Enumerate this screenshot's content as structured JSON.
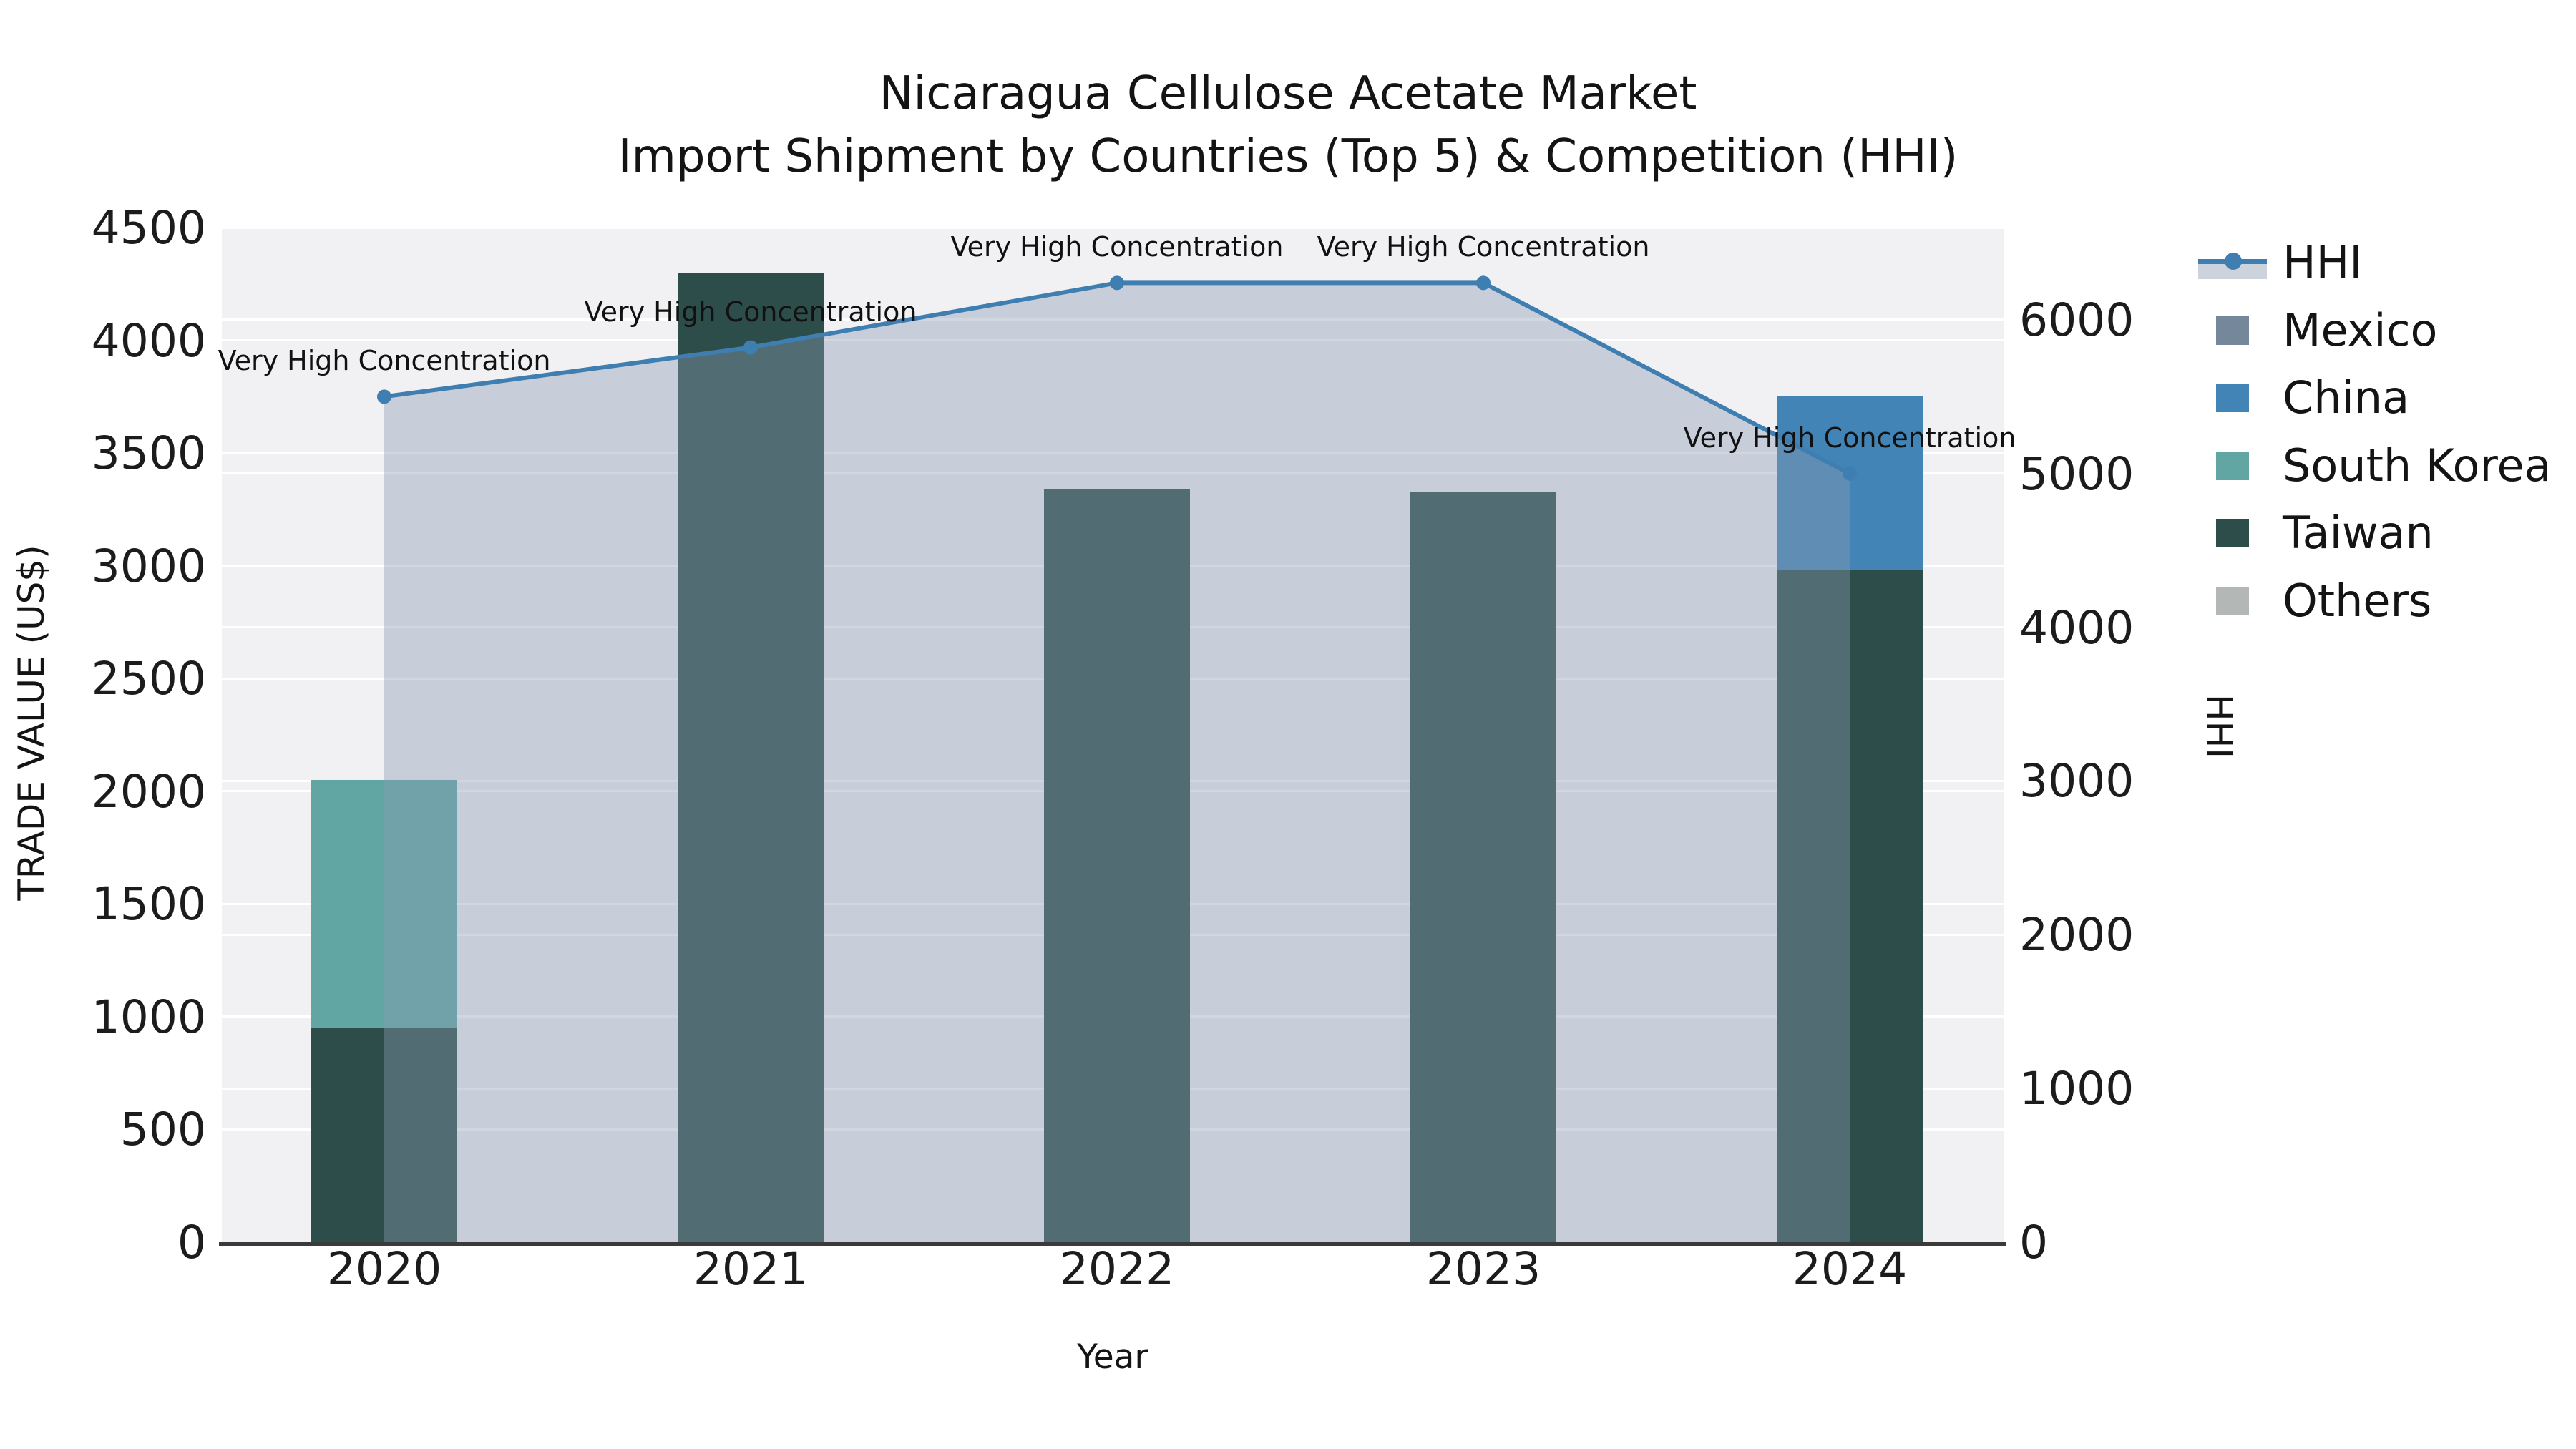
{
  "title": {
    "line1": "Nicaragua Cellulose Acetate Market",
    "line2": "Import Shipment by Countries (Top 5) & Competition (HHI)"
  },
  "legend": {
    "items": [
      {
        "label": "HHI",
        "type": "line",
        "color": "#3f7eb0",
        "band_color": "#ccd3dc"
      },
      {
        "label": "Mexico",
        "type": "patch",
        "color": "#75879b"
      },
      {
        "label": "China",
        "type": "patch",
        "color": "#4384b6"
      },
      {
        "label": "South Korea",
        "type": "patch",
        "color": "#62a6a3"
      },
      {
        "label": "Taiwan",
        "type": "patch",
        "color": "#2d4d4b"
      },
      {
        "label": "Others",
        "type": "patch",
        "color": "#b3b7b6"
      }
    ]
  },
  "chart_data": {
    "type": "combo-bar-line",
    "title": "Nicaragua Cellulose Acetate Market — Import Shipment by Countries (Top 5) & Competition (HHI)",
    "categories": [
      "2020",
      "2021",
      "2022",
      "2023",
      "2024"
    ],
    "xlabel": "Year",
    "left_axis": {
      "label": "TRADE VALUE (US$)",
      "min": 0,
      "max": 4500,
      "tick_step": 500,
      "ticks": [
        "0",
        "500",
        "1000",
        "1500",
        "2000",
        "2500",
        "3000",
        "3500",
        "4000",
        "4500"
      ]
    },
    "right_axis": {
      "label": "HHI",
      "min": 0,
      "max": 6600,
      "tick_step": 1000,
      "ticks": [
        "0",
        "1000",
        "2000",
        "3000",
        "4000",
        "5000",
        "6000"
      ]
    },
    "bar_series": [
      {
        "name": "Taiwan",
        "color": "#2d4d4b",
        "values": [
          950,
          4300,
          3340,
          3330,
          2980
        ]
      },
      {
        "name": "South Korea",
        "color": "#62a6a3",
        "values": [
          1100,
          0,
          0,
          0,
          0
        ]
      },
      {
        "name": "China",
        "color": "#4384b6",
        "values": [
          0,
          0,
          0,
          0,
          770
        ]
      },
      {
        "name": "Mexico",
        "color": "#75879b",
        "values": [
          0,
          0,
          0,
          0,
          0
        ]
      },
      {
        "name": "Others",
        "color": "#b3b7b6",
        "values": [
          0,
          0,
          0,
          0,
          0
        ]
      }
    ],
    "line_series": {
      "name": "HHI",
      "axis": "right",
      "color": "#3f7eb0",
      "marker": "circle",
      "fill_color": "rgba(138,156,178,0.4)",
      "values": [
        5500,
        5820,
        6240,
        6240,
        5000
      ]
    },
    "point_labels": [
      "Very High Concentration",
      "Very High Concentration",
      "Very High Concentration",
      "Very High Concentration",
      "Very High Concentration"
    ],
    "grid": {
      "horizontal": true,
      "color": "#ffffff"
    },
    "plot_background": "#f1f1f3",
    "legend_position": "right-outside-top"
  }
}
